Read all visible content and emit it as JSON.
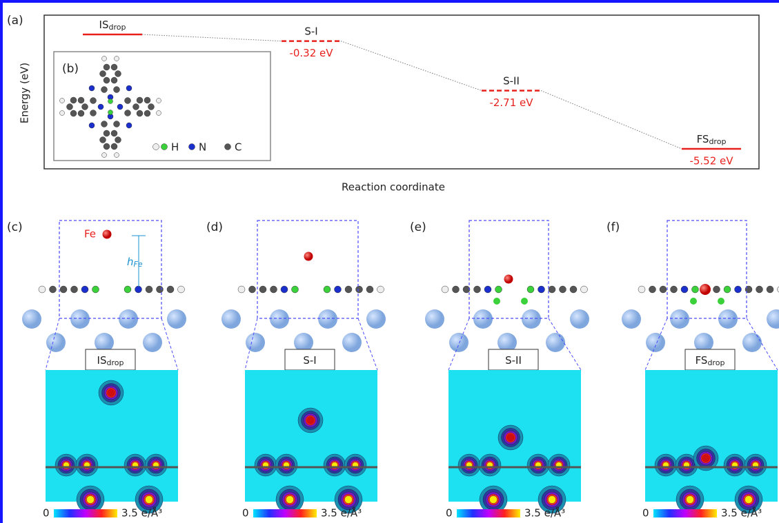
{
  "panel_a": {
    "label": "(a)",
    "y_axis_label": "Energy (eV)",
    "x_axis_label": "Reaction coordinate",
    "states": [
      {
        "name": "IS",
        "subscript": "drop",
        "energy": 0
      },
      {
        "name": "S-I",
        "energy": -0.32,
        "energy_label": "-0.32 eV"
      },
      {
        "name": "S-II",
        "energy": -2.71,
        "energy_label": "-2.71 eV"
      },
      {
        "name": "FS",
        "subscript": "drop",
        "energy": -5.52,
        "energy_label": "-5.52 eV"
      }
    ]
  },
  "panel_b": {
    "label": "(b)",
    "legend": [
      "H",
      "N",
      "C"
    ]
  },
  "panels": [
    {
      "label": "(c)",
      "state": "IS",
      "subscript": "drop",
      "atom_label": "Fe",
      "height_label": "h",
      "height_subscript": "Fe",
      "colorbar_min": "0",
      "colorbar_max": "3.5 e/Å³"
    },
    {
      "label": "(d)",
      "state": "S-I",
      "colorbar_min": "0",
      "colorbar_max": "3.5 e/Å³"
    },
    {
      "label": "(e)",
      "state": "S-II",
      "colorbar_min": "0",
      "colorbar_max": "3.5 e/Å³"
    },
    {
      "label": "(f)",
      "state": "FS",
      "subscript": "drop",
      "colorbar_min": "0",
      "colorbar_max": "3.5 e/Å³"
    }
  ]
}
